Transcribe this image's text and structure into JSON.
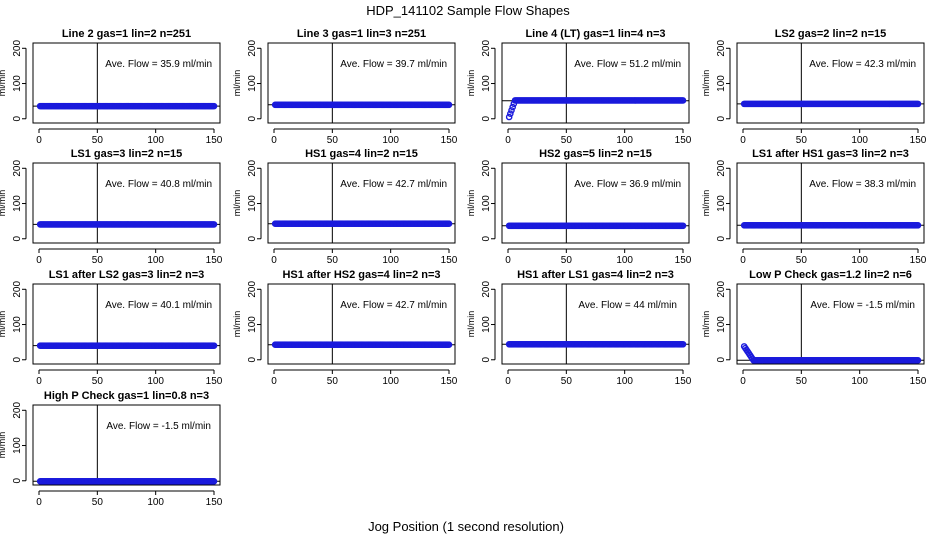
{
  "figure": {
    "title": "HDP_141102  Sample Flow Shapes",
    "xlabel": "Jog Position (1 second resolution)"
  },
  "colors": {
    "points": "#1a1adc",
    "axis": "#000000"
  },
  "chart_data": [
    {
      "type": "scatter",
      "title": "Line 2 gas=1 lin=2 n=251",
      "ylabel": "ml/min",
      "annotation": "Ave. Flow =  35.9  ml/min",
      "xlim": [
        0,
        150
      ],
      "ylim": [
        -12,
        215
      ],
      "xticks": [
        0,
        50,
        100,
        150
      ],
      "yticks": [
        0,
        100,
        200
      ],
      "vline": 50,
      "hline": 35.9,
      "shape": "flat",
      "level": 35.9
    },
    {
      "type": "scatter",
      "title": "Line 3 gas=1 lin=3 n=251",
      "ylabel": "ml/min",
      "annotation": "Ave. Flow =  39.7  ml/min",
      "xlim": [
        0,
        150
      ],
      "ylim": [
        -12,
        215
      ],
      "xticks": [
        0,
        50,
        100,
        150
      ],
      "yticks": [
        0,
        100,
        200
      ],
      "vline": 50,
      "hline": 39.7,
      "shape": "flat",
      "level": 39.7
    },
    {
      "type": "scatter",
      "title": "Line 4 (LT) gas=1 lin=4 n=3",
      "ylabel": "ml/min",
      "annotation": "Ave. Flow =  51.2  ml/min",
      "xlim": [
        0,
        150
      ],
      "ylim": [
        -12,
        215
      ],
      "xticks": [
        0,
        50,
        100,
        150
      ],
      "yticks": [
        0,
        100,
        200
      ],
      "vline": 50,
      "hline": 51.2,
      "shape": "rise",
      "level": 52,
      "start": 5
    },
    {
      "type": "scatter",
      "title": "LS2 gas=2 lin=2 n=15",
      "ylabel": "ml/min",
      "annotation": "Ave. Flow =  42.3  ml/min",
      "xlim": [
        0,
        150
      ],
      "ylim": [
        -12,
        215
      ],
      "xticks": [
        0,
        50,
        100,
        150
      ],
      "yticks": [
        0,
        100,
        200
      ],
      "vline": 50,
      "hline": 42.3,
      "shape": "flat",
      "level": 42.3
    },
    {
      "type": "scatter",
      "title": "LS1 gas=3 lin=2 n=15",
      "ylabel": "ml/min",
      "annotation": "Ave. Flow =  40.8  ml/min",
      "xlim": [
        0,
        150
      ],
      "ylim": [
        -12,
        215
      ],
      "xticks": [
        0,
        50,
        100,
        150
      ],
      "yticks": [
        0,
        100,
        200
      ],
      "vline": 50,
      "hline": 40.8,
      "shape": "flat",
      "level": 40.8
    },
    {
      "type": "scatter",
      "title": "HS1 gas=4 lin=2 n=15",
      "ylabel": "ml/min",
      "annotation": "Ave. Flow =  42.7  ml/min",
      "xlim": [
        0,
        150
      ],
      "ylim": [
        -12,
        215
      ],
      "xticks": [
        0,
        50,
        100,
        150
      ],
      "yticks": [
        0,
        100,
        200
      ],
      "vline": 50,
      "hline": 42.7,
      "shape": "flat",
      "level": 42.7
    },
    {
      "type": "scatter",
      "title": "HS2 gas=5 lin=2 n=15",
      "ylabel": "ml/min",
      "annotation": "Ave. Flow =  36.9  ml/min",
      "xlim": [
        0,
        150
      ],
      "ylim": [
        -12,
        215
      ],
      "xticks": [
        0,
        50,
        100,
        150
      ],
      "yticks": [
        0,
        100,
        200
      ],
      "vline": 50,
      "hline": 36.9,
      "shape": "flat",
      "level": 36.9
    },
    {
      "type": "scatter",
      "title": "LS1 after HS1 gas=3 lin=2 n=3",
      "ylabel": "ml/min",
      "annotation": "Ave. Flow =  38.3  ml/min",
      "xlim": [
        0,
        150
      ],
      "ylim": [
        -12,
        215
      ],
      "xticks": [
        0,
        50,
        100,
        150
      ],
      "yticks": [
        0,
        100,
        200
      ],
      "vline": 50,
      "hline": 38.3,
      "shape": "flat",
      "level": 38.3
    },
    {
      "type": "scatter",
      "title": "LS1 after LS2 gas=3 lin=2 n=3",
      "ylabel": "ml/min",
      "annotation": "Ave. Flow =  40.1  ml/min",
      "xlim": [
        0,
        150
      ],
      "ylim": [
        -12,
        215
      ],
      "xticks": [
        0,
        50,
        100,
        150
      ],
      "yticks": [
        0,
        100,
        200
      ],
      "vline": 50,
      "hline": 40.1,
      "shape": "flat",
      "level": 40.1
    },
    {
      "type": "scatter",
      "title": "HS1 after HS2 gas=4 lin=2 n=3",
      "ylabel": "ml/min",
      "annotation": "Ave. Flow =  42.7  ml/min",
      "xlim": [
        0,
        150
      ],
      "ylim": [
        -12,
        215
      ],
      "xticks": [
        0,
        50,
        100,
        150
      ],
      "yticks": [
        0,
        100,
        200
      ],
      "vline": 50,
      "hline": 42.7,
      "shape": "flat",
      "level": 42.7
    },
    {
      "type": "scatter",
      "title": "HS1 after LS1 gas=4 lin=2 n=3",
      "ylabel": "ml/min",
      "annotation": "Ave. Flow =  44  ml/min",
      "xlim": [
        0,
        150
      ],
      "ylim": [
        -12,
        215
      ],
      "xticks": [
        0,
        50,
        100,
        150
      ],
      "yticks": [
        0,
        100,
        200
      ],
      "vline": 50,
      "hline": 44,
      "shape": "flat",
      "level": 44
    },
    {
      "type": "scatter",
      "title": "Low P Check gas=1.2 lin=2 n=6",
      "ylabel": "ml/min",
      "annotation": "Ave. Flow =  -1.5  ml/min",
      "xlim": [
        0,
        150
      ],
      "ylim": [
        -12,
        215
      ],
      "xticks": [
        0,
        50,
        100,
        150
      ],
      "yticks": [
        0,
        100,
        200
      ],
      "vline": 50,
      "hline": -1.5,
      "shape": "decay",
      "level": -1.5,
      "start": 38
    },
    {
      "type": "scatter",
      "title": "High P Check gas=1 lin=0.8 n=3",
      "ylabel": "ml/min",
      "annotation": "Ave. Flow =  -1.5  ml/min",
      "xlim": [
        0,
        150
      ],
      "ylim": [
        -12,
        215
      ],
      "xticks": [
        0,
        50,
        100,
        150
      ],
      "yticks": [
        0,
        100,
        200
      ],
      "vline": 50,
      "hline": -1.5,
      "shape": "flat",
      "level": -1.5
    }
  ]
}
